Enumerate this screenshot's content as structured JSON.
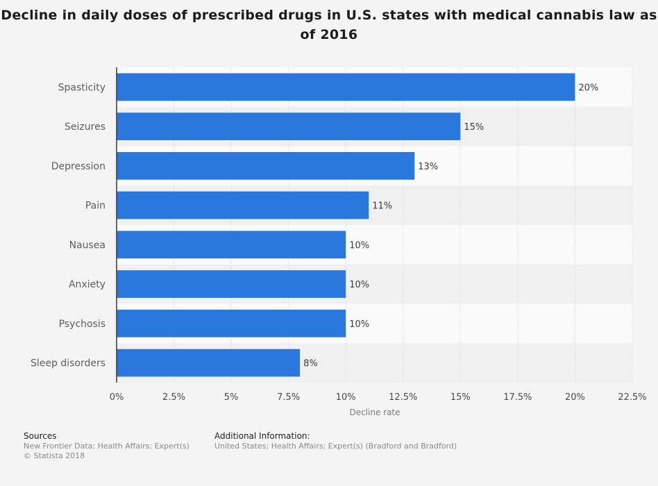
{
  "title": "Decline in daily doses of prescribed drugs in U.S. states with medical cannabis law as of 2016",
  "chart_data": {
    "type": "bar",
    "orientation": "horizontal",
    "categories": [
      "Spasticity",
      "Seizures",
      "Depression",
      "Pain",
      "Nausea",
      "Anxiety",
      "Psychosis",
      "Sleep disorders"
    ],
    "values": [
      20,
      15,
      13,
      11,
      10,
      10,
      10,
      8
    ],
    "value_labels": [
      "20%",
      "15%",
      "13%",
      "11%",
      "10%",
      "10%",
      "10%",
      "8%"
    ],
    "xlabel": "Decline rate",
    "ylabel": "",
    "xlim": [
      0,
      22.5
    ],
    "ticks": [
      0,
      2.5,
      5,
      7.5,
      10,
      12.5,
      15,
      17.5,
      20,
      22.5
    ],
    "tick_labels": [
      "0%",
      "2.5%",
      "5%",
      "7.5%",
      "10%",
      "12.5%",
      "15%",
      "17.5%",
      "20%",
      "22.5%"
    ],
    "bar_color": "#2a77dd",
    "grid": true
  },
  "footer": {
    "sources_heading": "Sources",
    "sources_line1": "New Frontier Data; Health Affairs; Expert(s)",
    "sources_line2": "© Statista 2018",
    "info_heading": "Additional Information:",
    "info_line1": "United States; Health Affairs; Expert(s) (Bradford and Bradford)"
  }
}
